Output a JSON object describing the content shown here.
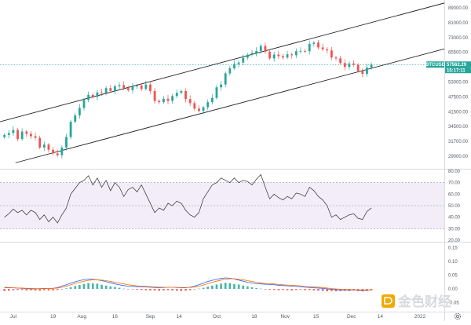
{
  "chart_data": [
    {
      "type": "candlestick",
      "panel": "price",
      "symbol": "BTCUSD",
      "last_price": "57562.29",
      "countdown": "15:17:11",
      "colors": {
        "up": "#26a69a",
        "down": "#ef5350",
        "tag_bg": "#26a69a",
        "channel": "#1f2229"
      },
      "price_axis_ticks": [
        "89000.00",
        "81000.00",
        "73000.00",
        "65500.00",
        "59000.00",
        "53000.00",
        "47500.00",
        "41500.00",
        "34500.00",
        "31700.00",
        "29000.00"
      ],
      "x_ticks": [
        "Jul",
        "19",
        "Aug",
        "16",
        "Sep",
        "14",
        "Oct",
        "18",
        "Nov",
        "15",
        "Dec",
        "14",
        "2022"
      ],
      "x_range": [
        "2021-06-25",
        "2022-01-12"
      ],
      "y_scale": "log",
      "y_range": [
        27000,
        92000
      ],
      "channel": {
        "upper": [
          {
            "date": "2021-06-25",
            "price": 38000
          },
          {
            "date": "2022-01-12",
            "price": 90000
          }
        ],
        "lower": [
          {
            "date": "2021-07-02",
            "price": 28200
          },
          {
            "date": "2022-01-12",
            "price": 64500
          }
        ]
      },
      "close_series": [
        34500,
        35000,
        35800,
        33500,
        35400,
        34800,
        34200,
        33800,
        31500,
        32200,
        31000,
        30200,
        29800,
        31500,
        34000,
        38000,
        39800,
        42000,
        44500,
        46200,
        45500,
        47000,
        46800,
        48500,
        47500,
        49200,
        49600,
        48500,
        47800,
        49100,
        49400,
        48200,
        49800,
        47500,
        44200,
        43800,
        44900,
        44200,
        45800,
        46900,
        47500,
        44800,
        43500,
        41800,
        41100,
        42200,
        43800,
        45200,
        48800,
        49800,
        54000,
        56000,
        57800,
        58400,
        60500,
        61800,
        62600,
        63500,
        65900,
        63200,
        60200,
        61900,
        61200,
        60600,
        62000,
        61600,
        63400,
        63500,
        63400,
        66900,
        67500,
        65200,
        64300,
        63800,
        60600,
        60200,
        58200,
        56600,
        58000,
        57500,
        54900,
        53800,
        56300,
        57562
      ]
    },
    {
      "type": "line",
      "panel": "rsi",
      "series": [
        {
          "values": [
            40,
            43,
            47,
            44,
            46,
            42,
            46,
            44,
            38,
            42,
            36,
            40,
            35,
            42,
            48,
            60,
            65,
            70,
            72,
            76,
            68,
            74,
            66,
            72,
            63,
            70,
            66,
            58,
            64,
            66,
            62,
            68,
            60,
            52,
            44,
            48,
            46,
            52,
            50,
            54,
            52,
            46,
            42,
            40,
            44,
            56,
            62,
            68,
            70,
            74,
            72,
            70,
            74,
            70,
            72,
            71,
            68,
            73,
            77,
            66,
            56,
            60,
            57,
            55,
            58,
            56,
            61,
            60,
            58,
            66,
            63,
            58,
            55,
            50,
            40,
            42,
            38,
            40,
            42,
            43,
            39,
            38,
            45,
            48
          ]
        }
      ],
      "axis_ticks": [
        "80.00",
        "70.00",
        "60.00",
        "50.00",
        "40.00",
        "30.00",
        "20.00"
      ],
      "ylim": [
        20,
        80
      ],
      "band": [
        30,
        70
      ],
      "dashed_levels": [
        30,
        50,
        70
      ]
    },
    {
      "type": "bar",
      "panel": "macd",
      "histogram": [
        -0.008,
        -0.007,
        -0.005,
        -0.004,
        -0.004,
        -0.006,
        -0.005,
        -0.006,
        -0.007,
        -0.005,
        -0.006,
        -0.006,
        -0.004,
        -0.001,
        0.002,
        0.006,
        0.01,
        0.014,
        0.018,
        0.021,
        0.02,
        0.019,
        0.015,
        0.012,
        0.009,
        0.007,
        0.004,
        0.001,
        -0.001,
        -0.002,
        -0.003,
        -0.004,
        -0.005,
        -0.006,
        -0.006,
        -0.007,
        -0.006,
        -0.005,
        -0.006,
        -0.007,
        -0.008,
        -0.007,
        -0.005,
        -0.002,
        0.001,
        0.004,
        0.008,
        0.012,
        0.016,
        0.019,
        0.022,
        0.021,
        0.018,
        0.016,
        0.012,
        0.009,
        0.006,
        0.003,
        0.001,
        -0.002,
        -0.003,
        -0.004,
        -0.005,
        -0.004,
        -0.005,
        -0.006,
        -0.004,
        -0.003,
        -0.005,
        -0.004,
        -0.006,
        -0.007,
        -0.008,
        -0.009,
        -0.008,
        -0.009,
        -0.008,
        -0.007,
        -0.008,
        -0.006,
        -0.008,
        -0.009,
        -0.008,
        -0.006
      ],
      "macd_line": [
        0.006,
        0.005,
        0.004,
        0.003,
        0.002,
        0.001,
        0.0,
        0.0,
        0.001,
        0.002,
        0.001,
        0.002,
        0.005,
        0.01,
        0.015,
        0.021,
        0.026,
        0.03,
        0.034,
        0.036,
        0.035,
        0.033,
        0.03,
        0.026,
        0.022,
        0.018,
        0.015,
        0.012,
        0.01,
        0.009,
        0.008,
        0.008,
        0.007,
        0.006,
        0.005,
        0.004,
        0.005,
        0.006,
        0.006,
        0.005,
        0.004,
        0.004,
        0.006,
        0.01,
        0.015,
        0.021,
        0.027,
        0.031,
        0.035,
        0.038,
        0.04,
        0.039,
        0.036,
        0.032,
        0.028,
        0.024,
        0.021,
        0.019,
        0.018,
        0.017,
        0.016,
        0.015,
        0.013,
        0.012,
        0.011,
        0.01,
        0.009,
        0.008,
        0.006,
        0.005,
        0.004,
        0.003,
        0.002,
        0.0,
        -0.002,
        -0.003,
        -0.004,
        -0.004,
        -0.005,
        -0.004,
        -0.005,
        -0.006,
        -0.005,
        -0.004
      ],
      "signal_line": [
        0.004,
        0.004,
        0.004,
        0.003,
        0.003,
        0.002,
        0.002,
        0.001,
        0.001,
        0.001,
        0.001,
        0.002,
        0.003,
        0.006,
        0.01,
        0.015,
        0.02,
        0.024,
        0.028,
        0.031,
        0.033,
        0.033,
        0.032,
        0.03,
        0.027,
        0.024,
        0.021,
        0.018,
        0.015,
        0.013,
        0.011,
        0.01,
        0.009,
        0.008,
        0.007,
        0.006,
        0.006,
        0.006,
        0.006,
        0.006,
        0.005,
        0.005,
        0.005,
        0.007,
        0.01,
        0.014,
        0.019,
        0.024,
        0.028,
        0.032,
        0.035,
        0.037,
        0.037,
        0.035,
        0.033,
        0.03,
        0.027,
        0.024,
        0.022,
        0.02,
        0.019,
        0.018,
        0.016,
        0.015,
        0.014,
        0.013,
        0.012,
        0.011,
        0.009,
        0.008,
        0.007,
        0.006,
        0.005,
        0.003,
        0.001,
        0.0,
        -0.001,
        -0.002,
        -0.003,
        -0.003,
        -0.004,
        -0.004,
        -0.004,
        -0.004
      ],
      "axis_ticks": [
        "0.15",
        "0.10",
        "0.05",
        "0.00",
        "-0.05"
      ],
      "ylim": [
        -0.08,
        0.16
      ],
      "colors": {
        "up": "#26a69a",
        "down": "#ef5350",
        "macd": "#2962ff",
        "signal": "#ff6d00"
      }
    }
  ],
  "watermark": {
    "text": "金色财经",
    "logo_color": "#f2a900",
    "text_color": "#d7d9de"
  },
  "icons": {
    "settings": "gear-icon"
  }
}
